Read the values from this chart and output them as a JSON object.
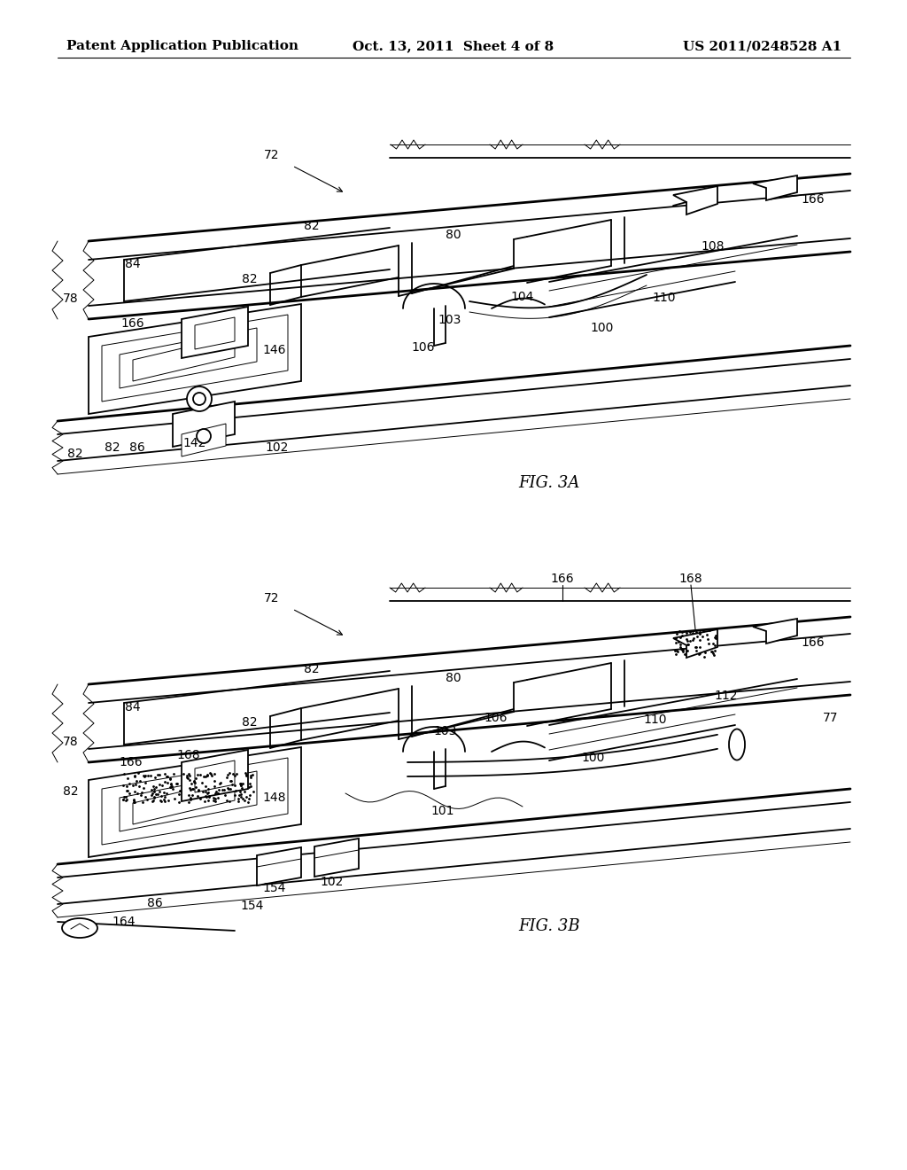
{
  "background_color": "#ffffff",
  "line_color": "#000000",
  "header_left": "Patent Application Publication",
  "header_center": "Oct. 13, 2011  Sheet 4 of 8",
  "header_right": "US 2011/0248528 A1",
  "fig3a_label": "FIG. 3A",
  "fig3b_label": "FIG. 3B",
  "header_font_size": 11,
  "fig_label_font_size": 13,
  "ref_font_size": 10,
  "lw_main": 1.3,
  "lw_thick": 2.0,
  "lw_thin": 0.7
}
